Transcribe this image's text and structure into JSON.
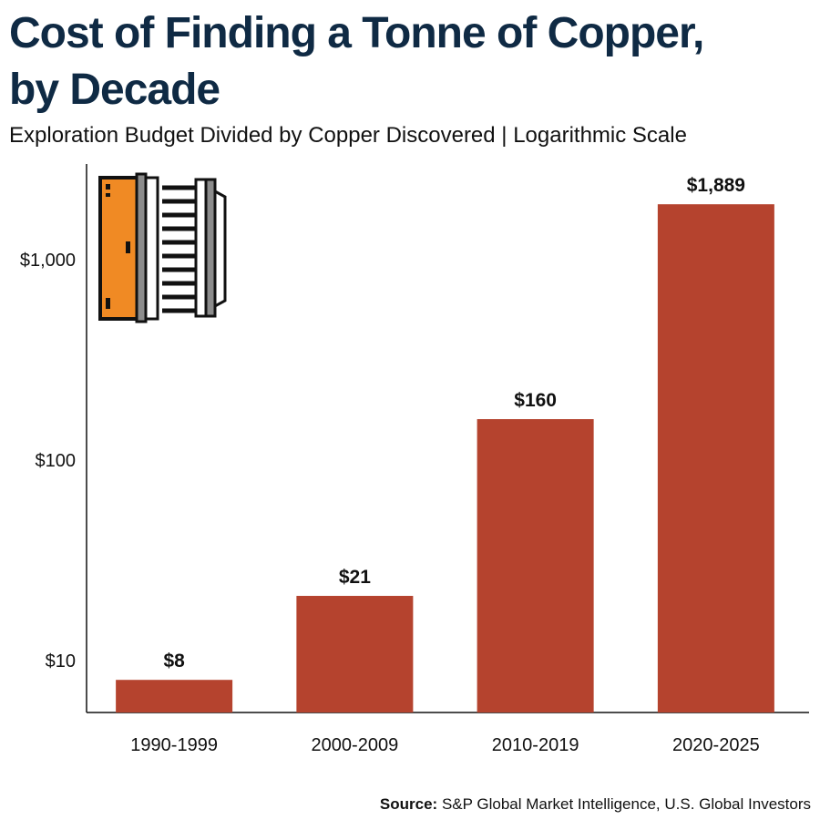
{
  "title_line1": "Cost of Finding a Tonne of Copper,",
  "title_line2": "by Decade",
  "subtitle": "Exploration Budget Divided by Copper Discovered | Logarithmic Scale",
  "source": {
    "label": "Source:",
    "text": " S&P Global Market Intelligence, U.S. Global Investors"
  },
  "icon": "copper-coil-icon",
  "colors": {
    "bar": "#b5432e",
    "title": "#0f2a44",
    "axis": "#111111",
    "icon_orange": "#f08a24",
    "icon_gray": "#8c8c8c"
  },
  "chart_data": {
    "type": "bar",
    "scale": "log",
    "categories": [
      "1990-1999",
      "2000-2009",
      "2010-2019",
      "2020-2025"
    ],
    "values": [
      8,
      21,
      160,
      1889
    ],
    "data_labels": [
      "$8",
      "$21",
      "$160",
      "$1,889"
    ],
    "yticks": [
      10,
      100,
      1000
    ],
    "ytick_labels": [
      "$10",
      "$100",
      "$1,000"
    ],
    "ylim": [
      5.5,
      3000
    ],
    "grid": false,
    "legend": "none"
  }
}
